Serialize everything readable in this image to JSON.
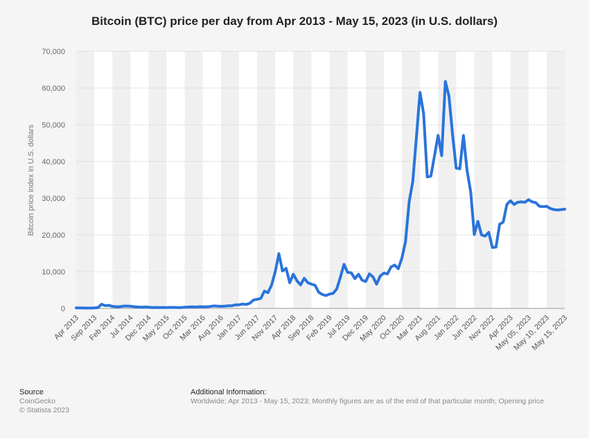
{
  "chart_data": {
    "type": "line",
    "title": "Bitcoin (BTC) price per day from Apr 2013 - May 15, 2023 (in U.S. dollars)",
    "y_label": "Bitcoin price index in U.S. dollars",
    "color": "#2a74db",
    "grid": true,
    "ylim": [
      0,
      70000
    ],
    "yticks": [
      {
        "value": 0,
        "label": "0"
      },
      {
        "value": 10000,
        "label": "10,000"
      },
      {
        "value": 20000,
        "label": "20,000"
      },
      {
        "value": 30000,
        "label": "30,000"
      },
      {
        "value": 40000,
        "label": "40,000"
      },
      {
        "value": 50000,
        "label": "50,000"
      },
      {
        "value": 60000,
        "label": "60,000"
      },
      {
        "value": 70000,
        "label": "70,000"
      }
    ],
    "categories": [
      "Apr 2013",
      null,
      null,
      null,
      null,
      "Sep 2013",
      null,
      null,
      null,
      null,
      "Feb 2014",
      null,
      null,
      null,
      null,
      "Jul 2014",
      null,
      null,
      null,
      null,
      "Dec 2014",
      null,
      null,
      null,
      null,
      "May 2015",
      null,
      null,
      null,
      null,
      "Oct 2015",
      null,
      null,
      null,
      null,
      "Mar 2016",
      null,
      null,
      null,
      null,
      "Aug 2016",
      null,
      null,
      null,
      null,
      "Jan 2017",
      null,
      null,
      null,
      null,
      "Jun 2017",
      null,
      null,
      null,
      null,
      "Nov 2017",
      null,
      null,
      null,
      null,
      "Apr 2018",
      null,
      null,
      null,
      null,
      "Sep 2018",
      null,
      null,
      null,
      null,
      "Feb 2019",
      null,
      null,
      null,
      null,
      "Jul 2019",
      null,
      null,
      null,
      null,
      "Dec 2019",
      null,
      null,
      null,
      null,
      "May 2020",
      null,
      null,
      null,
      null,
      "Oct 2020",
      null,
      null,
      null,
      null,
      "Mar 2021",
      null,
      null,
      null,
      null,
      "Aug 2021",
      null,
      null,
      null,
      null,
      "Jan 2022",
      null,
      null,
      null,
      null,
      "Jun 2022",
      null,
      null,
      null,
      null,
      "Nov 2022",
      null,
      null,
      null,
      null,
      "Apr 2023",
      null,
      null,
      null,
      null,
      "May 05, 2023",
      null,
      null,
      null,
      null,
      "May 10, 2023",
      null,
      null,
      null,
      null,
      "May 15, 2023"
    ],
    "values": [
      135,
      116,
      129,
      97,
      106,
      141,
      203,
      1129,
      754,
      829,
      565,
      457,
      447,
      628,
      640,
      587,
      477,
      387,
      338,
      378,
      320,
      218,
      254,
      244,
      235,
      230,
      263,
      284,
      231,
      236,
      314,
      378,
      430,
      369,
      437,
      416,
      448,
      531,
      673,
      624,
      573,
      609,
      700,
      742,
      963,
      970,
      1190,
      1080,
      1421,
      2300,
      2480,
      2718,
      4700,
      4300,
      6400,
      10000,
      14900,
      10200,
      10900,
      7000,
      9300,
      7500,
      6400,
      8200,
      7000,
      6600,
      6300,
      4400,
      3800,
      3500,
      3900,
      4100,
      5300,
      8500,
      12000,
      9800,
      9700,
      8100,
      9300,
      7700,
      7300,
      9400,
      8600,
      6600,
      8800,
      9600,
      9400,
      11300,
      11800,
      10800,
      13700,
      18200,
      29000,
      34500,
      46500,
      58800,
      53000,
      35800,
      36000,
      41500,
      47100,
      41600,
      61800,
      57800,
      47300,
      38200,
      38000,
      47100,
      37600,
      31800,
      20100,
      23700,
      20000,
      19700,
      20700,
      16600,
      16700,
      22900,
      23500,
      28300,
      29300,
      28300,
      28900,
      29000,
      28900,
      29600,
      29000,
      28800,
      27800,
      27700,
      27800,
      27200,
      26900,
      26800,
      26900,
      27000
    ]
  },
  "footer": {
    "source_title": "Source",
    "source": "CoinGecko",
    "copyright": "© Statista 2023",
    "info_title": "Additional Information:",
    "info": "Worldwide; Apr 2013 - May 15, 2023; Monthly figures are as of the end of that particular month; Opening price"
  }
}
